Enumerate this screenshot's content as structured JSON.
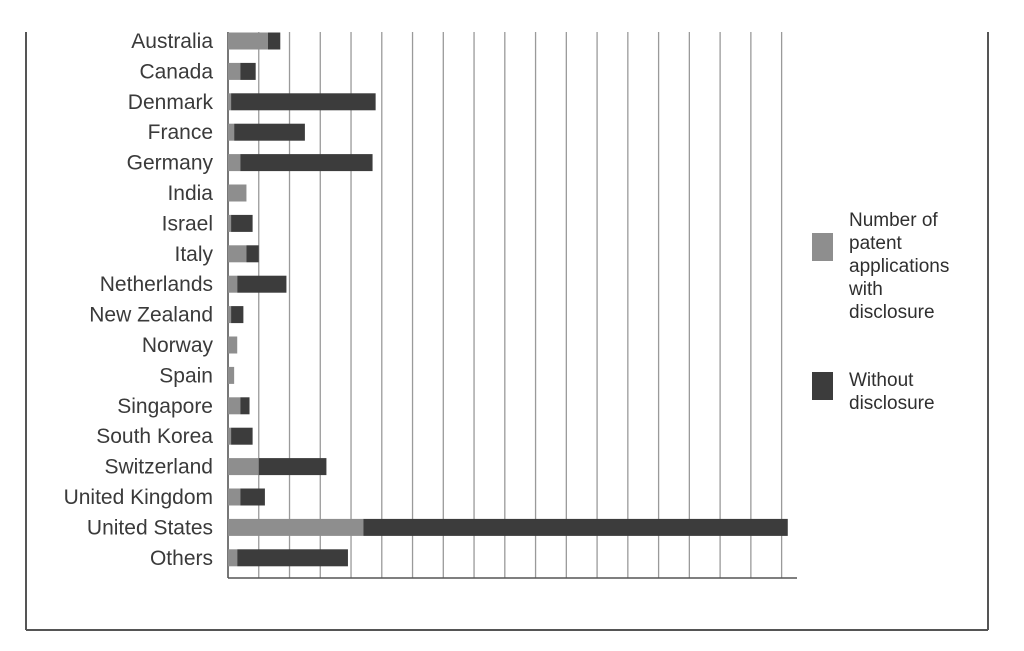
{
  "colors": {
    "with_disclosure": "#8e8e8e",
    "without_disclosure": "#3c3c3c",
    "grid": "#9a9a9a",
    "frame": "#555555",
    "text": "#3a3a3a"
  },
  "chart_data": {
    "type": "bar",
    "orientation": "horizontal",
    "stacked": true,
    "title": "",
    "xlabel": "",
    "ylabel": "",
    "categories": [
      "Australia",
      "Canada",
      "Denmark",
      "France",
      "Germany",
      "India",
      "Israel",
      "Italy",
      "Netherlands",
      "New Zealand",
      "Norway",
      "Spain",
      "Singapore",
      "South Korea",
      "Switzerland",
      "United Kingdom",
      "United States",
      "Others"
    ],
    "series": [
      {
        "name": "Number of patent applications with disclosure",
        "values": [
          13,
          4,
          1,
          2,
          4,
          6,
          1,
          6,
          3,
          1,
          3,
          2,
          4,
          1,
          10,
          4,
          44,
          3
        ]
      },
      {
        "name": "Without disclosure",
        "values": [
          4,
          5,
          47,
          23,
          43,
          0,
          7,
          4,
          16,
          4,
          0,
          0,
          3,
          7,
          22,
          8,
          138,
          36
        ]
      }
    ],
    "xlim": [
      0,
      185
    ],
    "gridlines": "vertical",
    "grid_step": 10,
    "legend_position": "right",
    "legend": [
      {
        "label_lines": [
          "Number of",
          "patent",
          "applications",
          "with",
          "disclosure"
        ]
      },
      {
        "label_lines": [
          "Without",
          "disclosure"
        ]
      }
    ]
  }
}
